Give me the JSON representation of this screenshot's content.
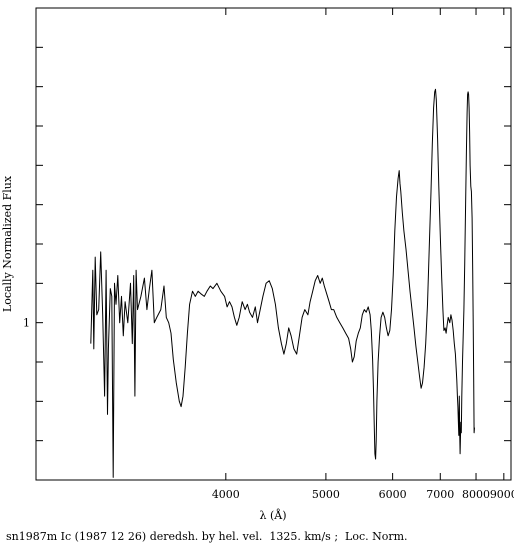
{
  "chart_data": {
    "type": "line",
    "xlabel": "λ (Å)",
    "ylabel": "Locally Normalized Flux",
    "caption": "sn1987m Ic (1987 12 26) deredsh. by hel. vel.  1325. km/s ;  Loc. Norm.",
    "x_scale": "reciprocal",
    "xlim": [
      2900,
      9300
    ],
    "ylim": [
      0.4,
      2.2
    ],
    "x_ticks": [
      {
        "value": 4000,
        "label": "4000"
      },
      {
        "value": 5000,
        "label": "5000"
      },
      {
        "value": 6000,
        "label": "6000"
      },
      {
        "value": 7000,
        "label": "7000"
      },
      {
        "value": 8000,
        "label": "8000"
      },
      {
        "value": 9000,
        "label": "9000"
      }
    ],
    "y_tick_values": [
      0.55,
      0.7,
      0.85,
      1.0,
      1.15,
      1.3,
      1.45,
      1.6,
      1.75,
      1.9,
      2.05
    ],
    "y_tick_labels": [
      {
        "value": 1.0,
        "label": "1"
      }
    ],
    "series": [
      {
        "color": "#000000",
        "points": [
          [
            3150,
            0.92
          ],
          [
            3160,
            1.2
          ],
          [
            3165,
            0.9
          ],
          [
            3172,
            1.25
          ],
          [
            3180,
            1.03
          ],
          [
            3190,
            1.05
          ],
          [
            3200,
            1.27
          ],
          [
            3210,
            1.03
          ],
          [
            3220,
            0.72
          ],
          [
            3228,
            1.2
          ],
          [
            3235,
            0.65
          ],
          [
            3240,
            0.9
          ],
          [
            3250,
            1.13
          ],
          [
            3258,
            1.1
          ],
          [
            3265,
            0.41
          ],
          [
            3272,
            1.15
          ],
          [
            3280,
            1.07
          ],
          [
            3290,
            1.18
          ],
          [
            3300,
            1.0
          ],
          [
            3310,
            1.1
          ],
          [
            3320,
            0.95
          ],
          [
            3330,
            1.08
          ],
          [
            3345,
            1.0
          ],
          [
            3360,
            1.15
          ],
          [
            3370,
            0.92
          ],
          [
            3378,
            1.18
          ],
          [
            3385,
            0.72
          ],
          [
            3392,
            1.2
          ],
          [
            3400,
            1.05
          ],
          [
            3420,
            1.1
          ],
          [
            3440,
            1.17
          ],
          [
            3455,
            1.05
          ],
          [
            3470,
            1.13
          ],
          [
            3485,
            1.2
          ],
          [
            3500,
            1.0
          ],
          [
            3515,
            1.02
          ],
          [
            3540,
            1.05
          ],
          [
            3560,
            1.14
          ],
          [
            3575,
            1.02
          ],
          [
            3590,
            1.0
          ],
          [
            3605,
            0.96
          ],
          [
            3620,
            0.86
          ],
          [
            3640,
            0.77
          ],
          [
            3660,
            0.7
          ],
          [
            3672,
            0.68
          ],
          [
            3685,
            0.72
          ],
          [
            3700,
            0.83
          ],
          [
            3715,
            0.96
          ],
          [
            3730,
            1.07
          ],
          [
            3750,
            1.12
          ],
          [
            3770,
            1.1
          ],
          [
            3790,
            1.12
          ],
          [
            3810,
            1.11
          ],
          [
            3835,
            1.1
          ],
          [
            3855,
            1.12
          ],
          [
            3880,
            1.14
          ],
          [
            3900,
            1.13
          ],
          [
            3930,
            1.15
          ],
          [
            3960,
            1.12
          ],
          [
            3990,
            1.1
          ],
          [
            4010,
            1.06
          ],
          [
            4030,
            1.08
          ],
          [
            4050,
            1.06
          ],
          [
            4070,
            1.02
          ],
          [
            4090,
            0.99
          ],
          [
            4110,
            1.02
          ],
          [
            4135,
            1.08
          ],
          [
            4160,
            1.05
          ],
          [
            4180,
            1.07
          ],
          [
            4200,
            1.04
          ],
          [
            4225,
            1.02
          ],
          [
            4250,
            1.06
          ],
          [
            4270,
            1.0
          ],
          [
            4295,
            1.05
          ],
          [
            4320,
            1.1
          ],
          [
            4350,
            1.15
          ],
          [
            4380,
            1.16
          ],
          [
            4410,
            1.13
          ],
          [
            4440,
            1.07
          ],
          [
            4470,
            0.98
          ],
          [
            4500,
            0.92
          ],
          [
            4525,
            0.88
          ],
          [
            4550,
            0.92
          ],
          [
            4575,
            0.98
          ],
          [
            4600,
            0.95
          ],
          [
            4630,
            0.9
          ],
          [
            4660,
            0.88
          ],
          [
            4690,
            0.95
          ],
          [
            4720,
            1.02
          ],
          [
            4750,
            1.05
          ],
          [
            4785,
            1.03
          ],
          [
            4810,
            1.08
          ],
          [
            4840,
            1.12
          ],
          [
            4870,
            1.16
          ],
          [
            4900,
            1.18
          ],
          [
            4930,
            1.15
          ],
          [
            4955,
            1.17
          ],
          [
            4980,
            1.14
          ],
          [
            5010,
            1.11
          ],
          [
            5040,
            1.08
          ],
          [
            5070,
            1.05
          ],
          [
            5100,
            1.05
          ],
          [
            5140,
            1.02
          ],
          [
            5180,
            1.0
          ],
          [
            5220,
            0.98
          ],
          [
            5260,
            0.96
          ],
          [
            5300,
            0.94
          ],
          [
            5330,
            0.9
          ],
          [
            5355,
            0.85
          ],
          [
            5380,
            0.87
          ],
          [
            5410,
            0.93
          ],
          [
            5440,
            0.96
          ],
          [
            5470,
            0.98
          ],
          [
            5500,
            1.03
          ],
          [
            5530,
            1.05
          ],
          [
            5560,
            1.04
          ],
          [
            5590,
            1.06
          ],
          [
            5620,
            1.03
          ],
          [
            5640,
            0.97
          ],
          [
            5660,
            0.86
          ],
          [
            5675,
            0.74
          ],
          [
            5688,
            0.6
          ],
          [
            5698,
            0.5
          ],
          [
            5708,
            0.48
          ],
          [
            5718,
            0.55
          ],
          [
            5730,
            0.7
          ],
          [
            5750,
            0.85
          ],
          [
            5775,
            0.95
          ],
          [
            5800,
            1.02
          ],
          [
            5830,
            1.04
          ],
          [
            5860,
            1.02
          ],
          [
            5890,
            0.98
          ],
          [
            5920,
            0.95
          ],
          [
            5950,
            0.97
          ],
          [
            5980,
            1.05
          ],
          [
            6010,
            1.18
          ],
          [
            6040,
            1.35
          ],
          [
            6070,
            1.48
          ],
          [
            6100,
            1.55
          ],
          [
            6120,
            1.58
          ],
          [
            6135,
            1.53
          ],
          [
            6150,
            1.5
          ],
          [
            6180,
            1.42
          ],
          [
            6210,
            1.35
          ],
          [
            6250,
            1.28
          ],
          [
            6290,
            1.2
          ],
          [
            6330,
            1.12
          ],
          [
            6370,
            1.05
          ],
          [
            6410,
            0.98
          ],
          [
            6450,
            0.91
          ],
          [
            6490,
            0.85
          ],
          [
            6530,
            0.79
          ],
          [
            6560,
            0.75
          ],
          [
            6590,
            0.77
          ],
          [
            6625,
            0.83
          ],
          [
            6660,
            0.92
          ],
          [
            6700,
            1.07
          ],
          [
            6740,
            1.28
          ],
          [
            6780,
            1.5
          ],
          [
            6810,
            1.68
          ],
          [
            6840,
            1.82
          ],
          [
            6865,
            1.88
          ],
          [
            6885,
            1.89
          ],
          [
            6905,
            1.85
          ],
          [
            6935,
            1.7
          ],
          [
            6965,
            1.52
          ],
          [
            7000,
            1.33
          ],
          [
            7035,
            1.17
          ],
          [
            7065,
            1.05
          ],
          [
            7090,
            0.97
          ],
          [
            7120,
            0.98
          ],
          [
            7145,
            0.96
          ],
          [
            7170,
            0.99
          ],
          [
            7200,
            1.02
          ],
          [
            7240,
            1.0
          ],
          [
            7270,
            1.03
          ],
          [
            7300,
            1.01
          ],
          [
            7330,
            0.97
          ],
          [
            7360,
            0.92
          ],
          [
            7390,
            0.88
          ],
          [
            7410,
            0.83
          ],
          [
            7430,
            0.78
          ],
          [
            7445,
            0.72
          ],
          [
            7460,
            0.68
          ],
          [
            7470,
            0.63
          ],
          [
            7485,
            0.57
          ],
          [
            7500,
            0.72
          ],
          [
            7510,
            0.58
          ],
          [
            7520,
            0.5
          ],
          [
            7530,
            0.55
          ],
          [
            7540,
            0.62
          ],
          [
            7555,
            0.58
          ],
          [
            7570,
            0.72
          ],
          [
            7590,
            0.85
          ],
          [
            7610,
            0.95
          ],
          [
            7630,
            1.05
          ],
          [
            7655,
            1.22
          ],
          [
            7680,
            1.45
          ],
          [
            7705,
            1.65
          ],
          [
            7725,
            1.8
          ],
          [
            7740,
            1.87
          ],
          [
            7755,
            1.88
          ],
          [
            7770,
            1.87
          ],
          [
            7785,
            1.82
          ],
          [
            7800,
            1.73
          ],
          [
            7815,
            1.6
          ],
          [
            7835,
            1.52
          ],
          [
            7855,
            1.5
          ],
          [
            7875,
            1.4
          ],
          [
            7895,
            1.2
          ],
          [
            7910,
            1.0
          ],
          [
            7925,
            0.78
          ],
          [
            7938,
            0.58
          ],
          [
            7950,
            0.6
          ]
        ]
      }
    ]
  }
}
